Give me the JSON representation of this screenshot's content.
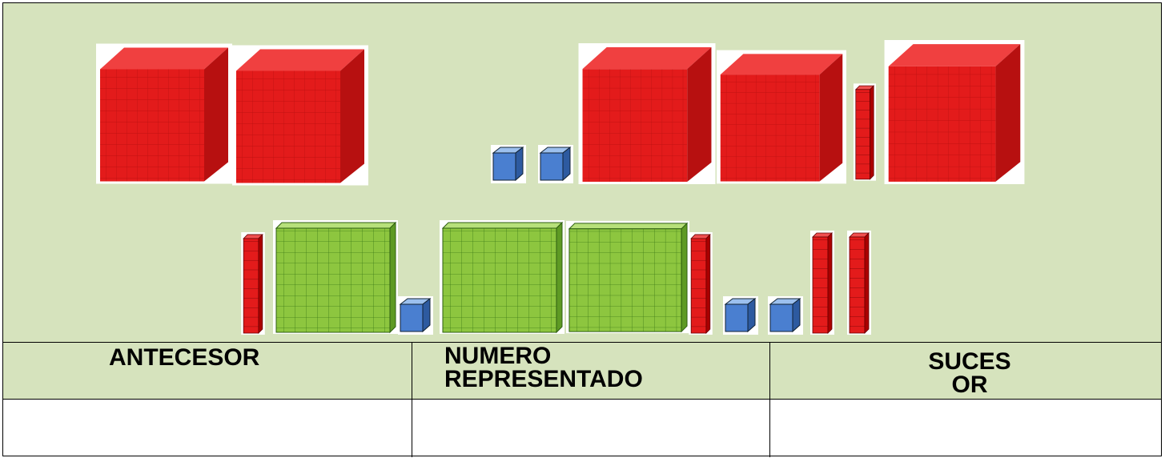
{
  "table": {
    "headers": [
      [
        "ANTECESOR"
      ],
      [
        "NUMERO",
        "REPRESENTADO"
      ],
      [
        "SUCES",
        "OR"
      ]
    ]
  }
}
